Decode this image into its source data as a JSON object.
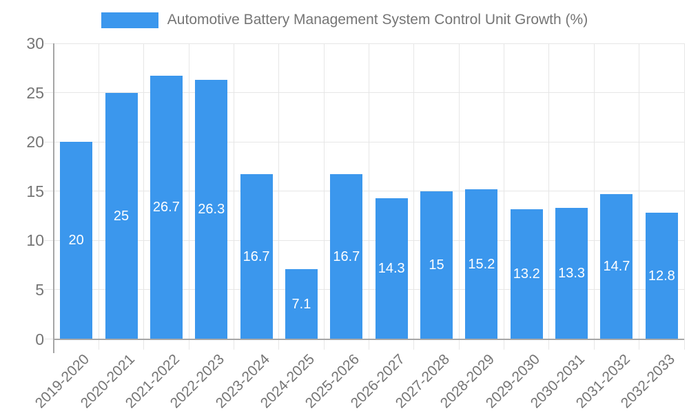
{
  "chart_data": {
    "type": "bar",
    "title": "Automotive Battery Management System Control Unit Growth (%)",
    "categories": [
      "2019-2020",
      "2020-2021",
      "2021-2022",
      "2022-2023",
      "2023-2024",
      "2024-2025",
      "2025-2026",
      "2026-2027",
      "2027-2028",
      "2028-2029",
      "2029-2030",
      "2030-2031",
      "2031-2032",
      "2032-2033"
    ],
    "values": [
      20,
      25,
      26.7,
      26.3,
      16.7,
      7.1,
      16.7,
      14.3,
      15,
      15.2,
      13.2,
      13.3,
      14.7,
      12.8
    ],
    "value_labels": [
      20,
      25,
      26.7,
      26.3,
      16.7,
      7.1,
      16.7,
      14.3,
      15,
      15.2,
      13.2,
      13.3,
      14.7,
      12.8
    ],
    "xlabel": "",
    "ylabel": "",
    "ylim": [
      0,
      30
    ],
    "y_ticks": [
      0,
      5,
      10,
      15,
      20,
      25,
      30
    ],
    "grid": true,
    "legend_position": "top",
    "value_label_position": "inside-center",
    "x_label_rotation_deg": 45,
    "colors": {
      "bar": "#3b97ed",
      "value_label": "#ffffff",
      "axis_text": "#757575",
      "gridline": "#e6e6e6",
      "axis_line": "#a6a6a6"
    }
  }
}
